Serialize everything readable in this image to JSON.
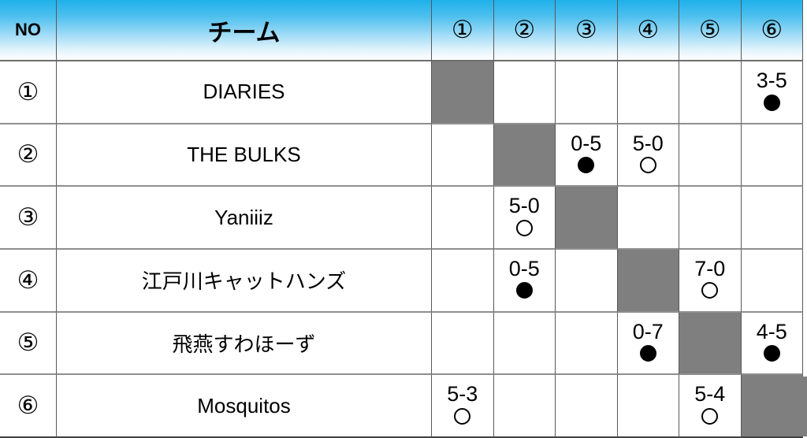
{
  "colors": {
    "header_blue": "#1fb0ea",
    "header_fade": "#ffffff",
    "self_cell_gray": "#7f7f7f",
    "grid_vertical": "#595959",
    "grid_horizontal": "#8f8f8f",
    "bottom_border": "#404040",
    "text": "#000000"
  },
  "marks": {
    "win": "○",
    "loss": "●"
  },
  "headers": {
    "no": "NO",
    "team": "チーム",
    "rounds": [
      "①",
      "②",
      "③",
      "④",
      "⑤",
      "⑥"
    ]
  },
  "rows": [
    {
      "no": "①",
      "team": "DIARIES",
      "results": [
        {
          "self": true
        },
        null,
        null,
        null,
        null,
        {
          "score": "3-5",
          "mark": "loss"
        }
      ]
    },
    {
      "no": "②",
      "team": "THE BULKS",
      "results": [
        null,
        {
          "self": true
        },
        {
          "score": "0-5",
          "mark": "loss"
        },
        {
          "score": "5-0",
          "mark": "win"
        },
        null,
        null
      ]
    },
    {
      "no": "③",
      "team": "Yaniiiz",
      "results": [
        null,
        {
          "score": "5-0",
          "mark": "win"
        },
        {
          "self": true
        },
        null,
        null,
        null
      ]
    },
    {
      "no": "④",
      "team": "江戸川キャットハンズ",
      "results": [
        null,
        {
          "score": "0-5",
          "mark": "loss"
        },
        null,
        {
          "self": true
        },
        {
          "score": "7-0",
          "mark": "win"
        },
        null
      ]
    },
    {
      "no": "⑤",
      "team": "飛燕すわほーず",
      "results": [
        null,
        null,
        null,
        {
          "score": "0-7",
          "mark": "loss"
        },
        {
          "self": true
        },
        {
          "score": "4-5",
          "mark": "loss"
        }
      ]
    },
    {
      "no": "⑥",
      "team": "Mosquitos",
      "results": [
        {
          "score": "5-3",
          "mark": "win"
        },
        null,
        null,
        null,
        {
          "score": "5-4",
          "mark": "win"
        },
        {
          "self": true
        }
      ]
    }
  ]
}
